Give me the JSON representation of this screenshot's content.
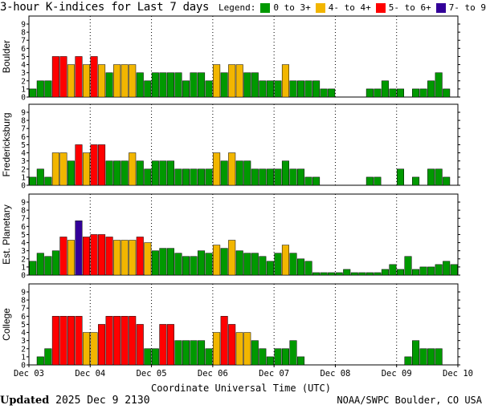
{
  "title": "3-hour K-indices for Last 7 days",
  "legend": {
    "label": "Legend:",
    "items": [
      {
        "label": "0 to 3+",
        "color": "#009900"
      },
      {
        "label": "4- to 4+",
        "color": "#f2b600"
      },
      {
        "label": "5- to 6+",
        "color": "#ff0000"
      },
      {
        "label": "7- to 9",
        "color": "#330099"
      }
    ]
  },
  "footer": {
    "updated_label": "Updated",
    "updated_value": "2025 Dec  9 2130",
    "source": "NOAA/SWPC Boulder, CO USA"
  },
  "chart_data": {
    "type": "bar",
    "xlabel": "Coordinate Universal Time (UTC)",
    "x_tick_labels": [
      "Dec 03",
      "Dec 04",
      "Dec 05",
      "Dec 06",
      "Dec 07",
      "Dec 08",
      "Dec 09",
      "Dec 10"
    ],
    "ylim": [
      0,
      9
    ],
    "y_ticks": [
      0,
      1,
      2,
      3,
      4,
      5,
      6,
      7,
      8,
      9
    ],
    "bins_per_day": 8,
    "thresholds": {
      "storm_minor": 4,
      "storm_moderate": 5,
      "storm_severe": 7
    },
    "panels": [
      {
        "ylabel": "Boulder",
        "values": [
          1,
          2,
          2,
          5,
          5,
          4,
          5,
          4,
          5,
          4,
          3,
          4,
          4,
          4,
          3,
          2,
          3,
          3,
          3,
          3,
          2,
          3,
          3,
          2,
          4,
          3,
          4,
          4,
          3,
          3,
          2,
          2,
          2,
          4,
          2,
          2,
          2,
          2,
          1,
          1,
          0,
          0,
          0,
          0,
          1,
          1,
          2,
          1,
          1,
          0,
          1,
          1,
          2,
          3,
          1,
          0
        ]
      },
      {
        "ylabel": "Fredericksburg",
        "values": [
          1,
          2,
          1,
          4,
          4,
          3,
          5,
          4,
          5,
          5,
          3,
          3,
          3,
          4,
          3,
          2,
          3,
          3,
          3,
          2,
          2,
          2,
          2,
          2,
          4,
          3,
          4,
          3,
          3,
          2,
          2,
          2,
          2,
          3,
          2,
          2,
          1,
          1,
          0,
          0,
          0,
          0,
          0,
          0,
          1,
          1,
          0,
          0,
          2,
          0,
          1,
          0,
          2,
          2,
          1,
          0
        ]
      },
      {
        "ylabel": "Est. Planetary",
        "values": [
          1.7,
          2.7,
          2.3,
          3,
          4.7,
          4.3,
          6.7,
          4.7,
          5,
          5,
          4.7,
          4.3,
          4.3,
          4.3,
          4.7,
          4,
          3,
          3.3,
          3.3,
          2.7,
          2.3,
          2.3,
          3,
          2.7,
          3.7,
          3.3,
          4.3,
          3,
          2.7,
          2.7,
          2.3,
          1.7,
          2.7,
          3.7,
          2.7,
          2,
          1.7,
          0.3,
          0.3,
          0.3,
          0.3,
          0.7,
          0.3,
          0.3,
          0.3,
          0.3,
          0.7,
          1.3,
          0.7,
          2.3,
          0.7,
          1,
          1,
          1.3,
          1.7,
          1.3
        ]
      },
      {
        "ylabel": "College",
        "values": [
          0,
          1,
          2,
          6,
          6,
          6,
          6,
          4,
          4,
          5,
          6,
          6,
          6,
          6,
          5,
          2,
          2,
          5,
          5,
          3,
          3,
          3,
          3,
          2,
          4,
          6,
          5,
          4,
          4,
          3,
          2,
          1,
          2,
          2,
          3,
          1,
          0,
          0,
          0,
          0,
          0,
          0,
          0,
          0,
          0,
          0,
          0,
          0,
          0,
          1,
          3,
          2,
          2,
          2,
          0,
          0
        ]
      }
    ]
  }
}
